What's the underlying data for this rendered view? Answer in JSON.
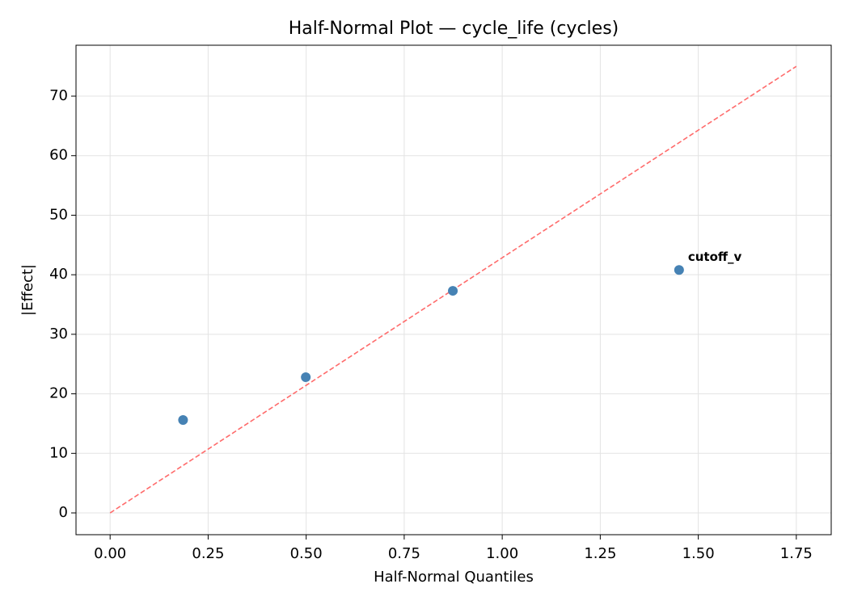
{
  "chart_data": {
    "type": "scatter",
    "title": "Half-Normal Plot — cycle_life (cycles)",
    "x_label": "Half-Normal Quantiles",
    "y_label": "|Effect|",
    "x": [
      0.186,
      0.499,
      0.874,
      1.451
    ],
    "values": [
      15.6,
      22.8,
      37.3,
      40.8
    ],
    "point_labels": [
      null,
      null,
      null,
      "cutoff_v"
    ],
    "color": "#4682b4",
    "label_color": "#ff0000",
    "reference_line": {
      "x": [
        0,
        1.75
      ],
      "values": [
        0,
        75
      ],
      "color": "#ff6b6b"
    },
    "xlim": [
      -0.087,
      1.839
    ],
    "ylim": [
      -3.66,
      78.55
    ],
    "xticks": [
      {
        "value": 0,
        "label": "0.00"
      },
      {
        "value": 0.25,
        "label": "0.25"
      },
      {
        "value": 0.5,
        "label": "0.50"
      },
      {
        "value": 0.75,
        "label": "0.75"
      },
      {
        "value": 1,
        "label": "1.00"
      },
      {
        "value": 1.25,
        "label": "1.25"
      },
      {
        "value": 1.5,
        "label": "1.50"
      },
      {
        "value": 1.75,
        "label": "1.75"
      }
    ],
    "yticks": [
      0,
      10,
      20,
      30,
      40,
      50,
      60,
      70
    ],
    "grid": true
  }
}
